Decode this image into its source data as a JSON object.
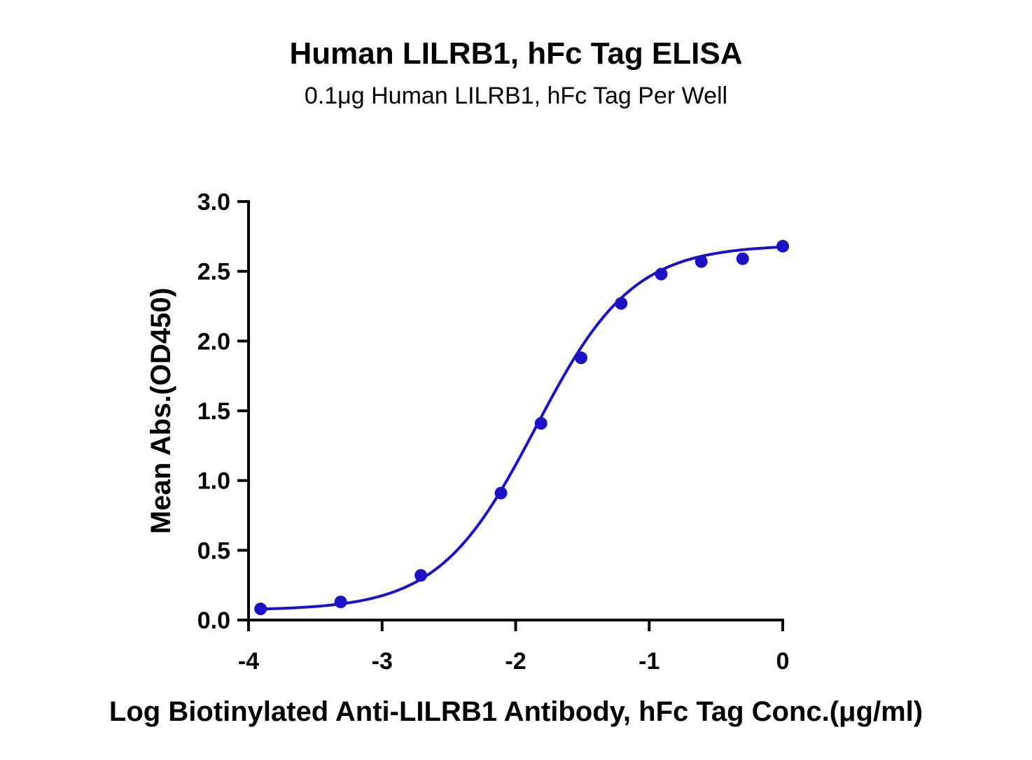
{
  "chart_data": {
    "type": "scatter",
    "title": "Human LILRB1, hFc Tag ELISA",
    "subtitle": "0.1μg Human LILRB1, hFc Tag Per Well",
    "xlabel": "Log Biotinylated Anti-LILRB1 Antibody, hFc Tag Conc.(μg/ml)",
    "ylabel": "Mean Abs.(OD450)",
    "xlim": [
      -4,
      0
    ],
    "ylim": [
      0,
      3.0
    ],
    "x_ticks": [
      -4,
      -3,
      -2,
      -1,
      0
    ],
    "x_tick_labels": [
      "-4",
      "-3",
      "-2",
      "-1",
      "0"
    ],
    "y_ticks": [
      0,
      0.5,
      1.0,
      1.5,
      2.0,
      2.5,
      3.0
    ],
    "y_tick_labels": [
      "0.0",
      "0.5",
      "1.0",
      "1.5",
      "2.0",
      "2.5",
      "3.0"
    ],
    "grid": false,
    "series": [
      {
        "x": [
          -3.91,
          -3.31,
          -2.71,
          -2.11,
          -1.81,
          -1.51,
          -1.21,
          -0.91,
          -0.61,
          -0.3,
          0.0
        ],
        "y": [
          0.08,
          0.13,
          0.32,
          0.91,
          1.41,
          1.88,
          2.27,
          2.48,
          2.57,
          2.59,
          2.68
        ],
        "color": "#1a12c4",
        "fit": {
          "model": "4PL",
          "bottom": 0.07,
          "top": 2.69,
          "logEC50": -1.85,
          "hill": 1.2
        }
      }
    ]
  }
}
